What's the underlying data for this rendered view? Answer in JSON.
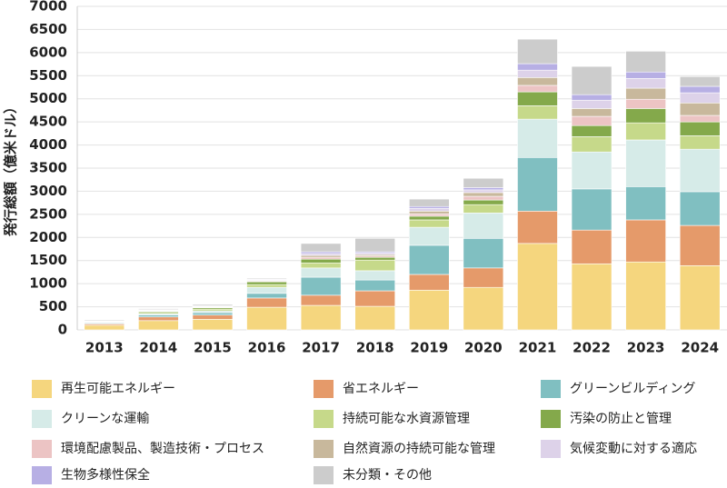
{
  "chart_data": {
    "type": "stacked_bar",
    "y_label": "発行総額（億米ドル）",
    "categories": [
      "2013",
      "2014",
      "2015",
      "2016",
      "2017",
      "2018",
      "2019",
      "2020",
      "2021",
      "2022",
      "2023",
      "2024"
    ],
    "ylim": [
      0,
      7000
    ],
    "yticks": [
      0,
      500,
      1000,
      1500,
      2000,
      2500,
      3000,
      3500,
      4000,
      4500,
      5000,
      5500,
      6000,
      6500,
      7000
    ],
    "grid": true,
    "series": [
      {
        "name": "再生可能エネルギー",
        "color": "#f5d67e",
        "values": [
          100,
          200,
          230,
          490,
          530,
          510,
          860,
          920,
          1870,
          1430,
          1470,
          1390
        ]
      },
      {
        "name": "省エネルギー",
        "color": "#e59a6a",
        "values": [
          30,
          80,
          90,
          200,
          220,
          335,
          340,
          420,
          700,
          730,
          910,
          870
        ]
      },
      {
        "name": "グリーンビルディング",
        "color": "#80bfc1",
        "values": [
          20,
          40,
          50,
          100,
          390,
          235,
          630,
          640,
          1160,
          890,
          720,
          730
        ]
      },
      {
        "name": "クリーンな運輸",
        "color": "#d6ebe8",
        "values": [
          10,
          30,
          40,
          130,
          200,
          200,
          390,
          550,
          830,
          800,
          1010,
          920
        ]
      },
      {
        "name": "持続可能な水資源管理",
        "color": "#c6d98a",
        "values": [
          10,
          30,
          40,
          60,
          110,
          230,
          160,
          180,
          290,
          330,
          370,
          290
        ]
      },
      {
        "name": "汚染の防止と管理",
        "color": "#84a94b",
        "values": [
          10,
          20,
          30,
          60,
          80,
          60,
          80,
          100,
          300,
          240,
          310,
          300
        ]
      },
      {
        "name": "環境配慮製品、製造技術・プロセス",
        "color": "#ecc4c4",
        "values": [
          5,
          10,
          10,
          15,
          40,
          30,
          50,
          80,
          140,
          200,
          200,
          140
        ]
      },
      {
        "name": "自然資源の持続可能な管理",
        "color": "#c8b89c",
        "values": [
          5,
          10,
          10,
          15,
          40,
          30,
          60,
          80,
          170,
          170,
          240,
          270
        ]
      },
      {
        "name": "気候変動に対する適応",
        "color": "#ddd2e9",
        "values": [
          5,
          10,
          10,
          15,
          40,
          30,
          60,
          60,
          160,
          180,
          210,
          220
        ]
      },
      {
        "name": "生物多様性保全",
        "color": "#b7afe4",
        "values": [
          5,
          10,
          10,
          15,
          40,
          30,
          40,
          50,
          140,
          120,
          140,
          140
        ]
      },
      {
        "name": "未分類・その他",
        "color": "#cccccc",
        "values": [
          20,
          20,
          30,
          20,
          180,
          290,
          160,
          200,
          530,
          610,
          450,
          210
        ]
      }
    ]
  }
}
